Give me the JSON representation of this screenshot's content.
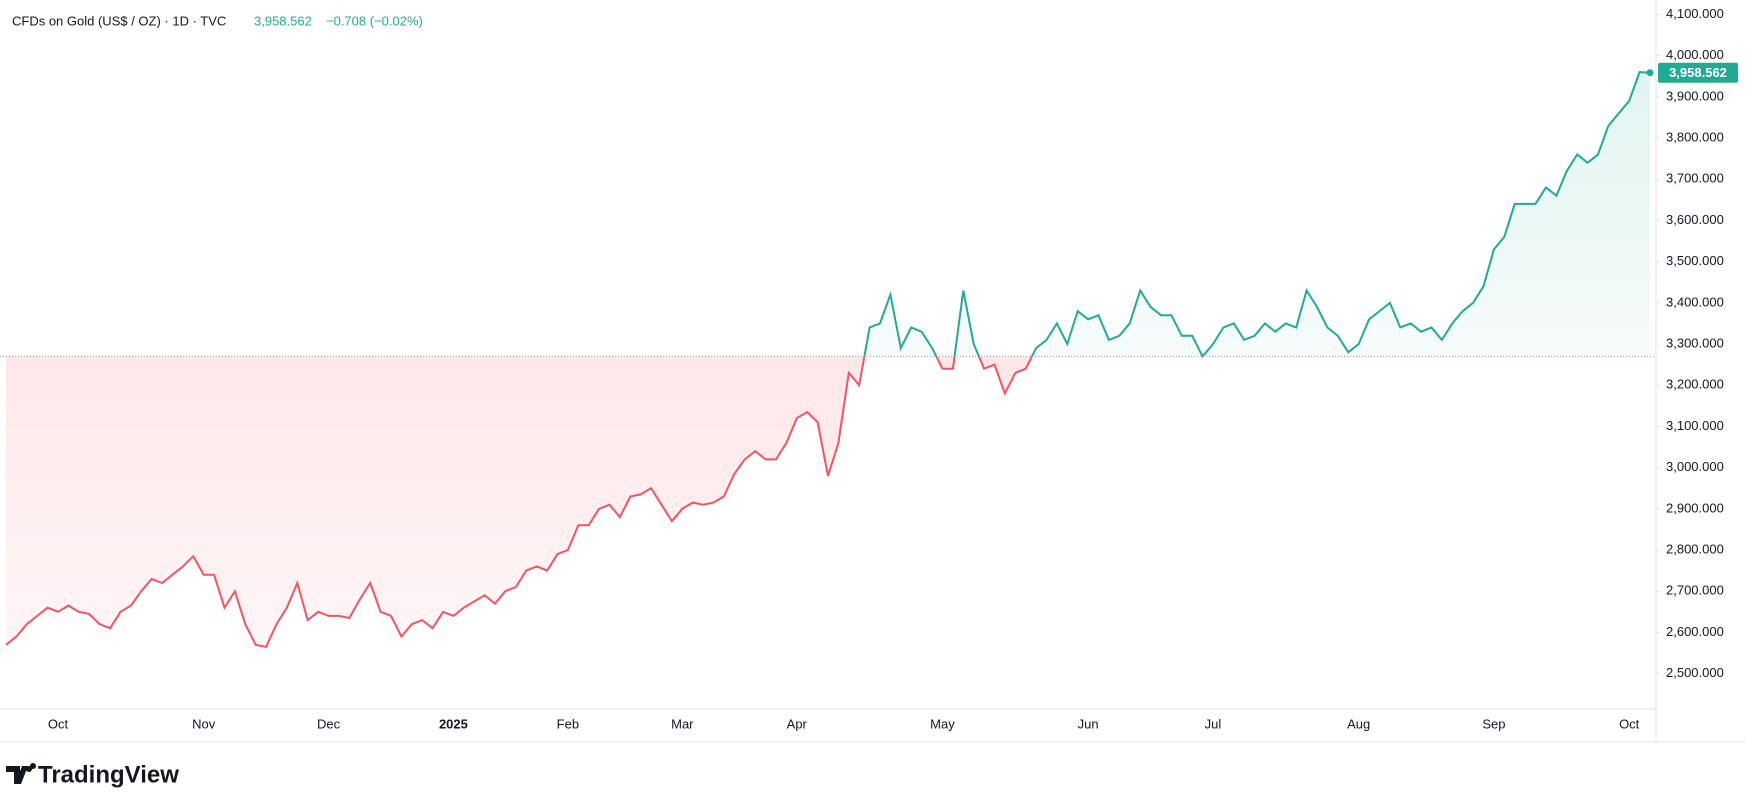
{
  "chart_data": {
    "type": "baseline",
    "title": "CFDs on Gold (US$ / OZ) · 1D · TVC",
    "last_label": "3,958.562",
    "change_label": "−0.708 (−0.02%)",
    "brand": "TradingView",
    "baseline": 3270,
    "up_color": "#22ab94",
    "down_color": "#f7525f",
    "categories": [
      null,
      null,
      null,
      null,
      null,
      "Oct",
      null,
      null,
      null,
      null,
      null,
      null,
      null,
      null,
      null,
      null,
      null,
      null,
      null,
      "Nov",
      null,
      null,
      null,
      null,
      null,
      null,
      null,
      null,
      null,
      null,
      null,
      "Dec",
      null,
      null,
      null,
      null,
      null,
      null,
      null,
      null,
      null,
      null,
      null,
      "2025",
      null,
      null,
      null,
      null,
      null,
      null,
      null,
      null,
      null,
      null,
      "Feb",
      null,
      null,
      null,
      null,
      null,
      null,
      null,
      null,
      null,
      null,
      "Mar",
      null,
      null,
      null,
      null,
      null,
      null,
      null,
      null,
      null,
      null,
      "Apr",
      null,
      null,
      null,
      null,
      null,
      null,
      null,
      null,
      null,
      null,
      null,
      null,
      null,
      "May",
      null,
      null,
      null,
      null,
      null,
      null,
      null,
      null,
      null,
      null,
      null,
      null,
      null,
      "Jun",
      null,
      null,
      null,
      null,
      null,
      null,
      null,
      null,
      null,
      null,
      null,
      "Jul",
      null,
      null,
      null,
      null,
      null,
      null,
      null,
      null,
      null,
      null,
      null,
      null,
      null,
      "Aug",
      null,
      null,
      null,
      null,
      null,
      null,
      null,
      null,
      null,
      null,
      null,
      null,
      "Sep",
      null,
      null,
      null,
      null,
      null,
      null,
      null,
      null,
      null,
      null,
      null,
      null,
      "Oct",
      null,
      null
    ],
    "values": [
      2570,
      2590,
      2620,
      2640,
      2660,
      2650,
      2665,
      2650,
      2645,
      2620,
      2610,
      2650,
      2665,
      2700,
      2730,
      2720,
      2740,
      2760,
      2785,
      2740,
      2740,
      2660,
      2700,
      2620,
      2570,
      2565,
      2620,
      2660,
      2720,
      2630,
      2650,
      2640,
      2640,
      2635,
      2680,
      2720,
      2650,
      2640,
      2590,
      2620,
      2630,
      2610,
      2650,
      2640,
      2660,
      2675,
      2690,
      2670,
      2700,
      2710,
      2750,
      2760,
      2750,
      2790,
      2800,
      2860,
      2860,
      2900,
      2910,
      2880,
      2930,
      2935,
      2950,
      2910,
      2870,
      2900,
      2915,
      2910,
      2915,
      2930,
      2985,
      3020,
      3040,
      3020,
      3020,
      3060,
      3120,
      3135,
      3110,
      2980,
      3060,
      3230,
      3200,
      3340,
      3350,
      3420,
      3290,
      3340,
      3330,
      3290,
      3240,
      3240,
      3430,
      3300,
      3240,
      3250,
      3180,
      3230,
      3240,
      3290,
      3310,
      3350,
      3300,
      3380,
      3360,
      3370,
      3310,
      3320,
      3350,
      3430,
      3390,
      3370,
      3370,
      3320,
      3320,
      3270,
      3300,
      3340,
      3350,
      3310,
      3320,
      3350,
      3330,
      3350,
      3340,
      3430,
      3390,
      3340,
      3320,
      3280,
      3300,
      3360,
      3380,
      3400,
      3340,
      3350,
      3330,
      3340,
      3310,
      3350,
      3380,
      3400,
      3440,
      3530,
      3560,
      3640,
      3640,
      3640,
      3680,
      3660,
      3720,
      3760,
      3740,
      3760,
      3830,
      3860,
      3890,
      3960,
      3958.562
    ],
    "ylim": [
      2419,
      4135
    ],
    "yticks": [
      {
        "value": 2500,
        "label": "2,500.000"
      },
      {
        "value": 2600,
        "label": "2,600.000"
      },
      {
        "value": 2700,
        "label": "2,700.000"
      },
      {
        "value": 2800,
        "label": "2,800.000"
      },
      {
        "value": 2900,
        "label": "2,900.000"
      },
      {
        "value": 3000,
        "label": "3,000.000"
      },
      {
        "value": 3100,
        "label": "3,100.000"
      },
      {
        "value": 3200,
        "label": "3,200.000"
      },
      {
        "value": 3300,
        "label": "3,300.000"
      },
      {
        "value": 3400,
        "label": "3,400.000"
      },
      {
        "value": 3500,
        "label": "3,500.000"
      },
      {
        "value": 3600,
        "label": "3,600.000"
      },
      {
        "value": 3700,
        "label": "3,700.000"
      },
      {
        "value": 3800,
        "label": "3,800.000"
      },
      {
        "value": 3900,
        "label": "3,900.000"
      },
      {
        "value": 4000,
        "label": "4,000.000"
      },
      {
        "value": 4100,
        "label": "4,100.000"
      }
    ]
  }
}
